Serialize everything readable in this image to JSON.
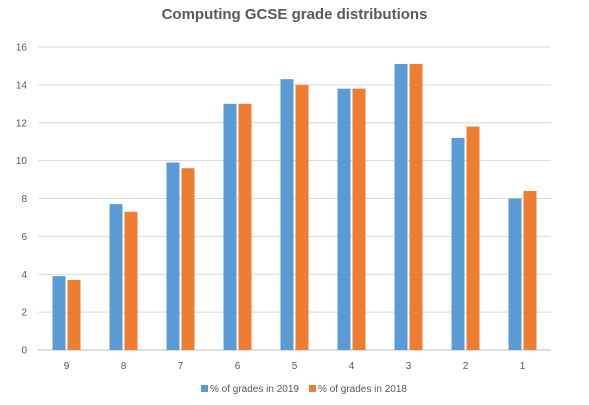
{
  "chart_data": {
    "type": "bar",
    "title": "Computing GCSE grade distributions",
    "xlabel": "",
    "ylabel": "",
    "categories": [
      "9",
      "8",
      "7",
      "6",
      "5",
      "4",
      "3",
      "2",
      "1"
    ],
    "series": [
      {
        "name": "% of grades in 2019",
        "color": "#5B9BD5",
        "values": [
          3.9,
          7.7,
          9.9,
          13.0,
          14.3,
          13.8,
          15.1,
          11.2,
          8.0
        ]
      },
      {
        "name": "% of grades in 2018",
        "color": "#ED7D31",
        "values": [
          3.7,
          7.3,
          9.6,
          13.0,
          14.0,
          13.8,
          15.1,
          11.8,
          8.4
        ]
      }
    ],
    "ylim": [
      0,
      16
    ],
    "yticks": [
      "0",
      "2",
      "4",
      "6",
      "8",
      "10",
      "12",
      "14",
      "16"
    ],
    "grid": true,
    "legend_position": "bottom"
  }
}
